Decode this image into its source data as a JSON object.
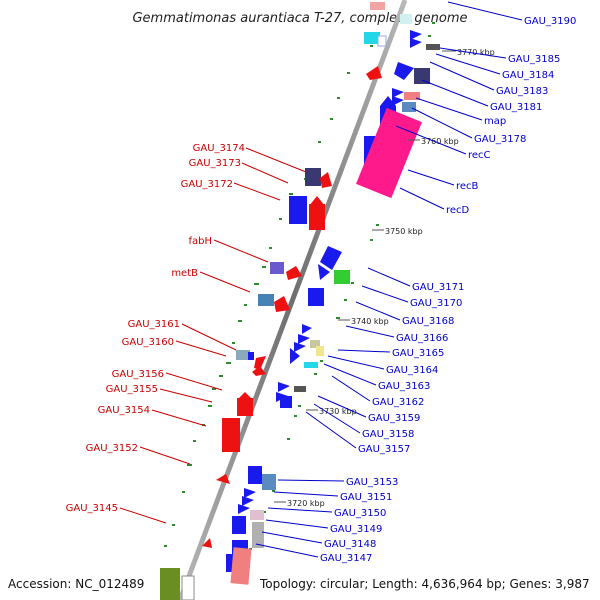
{
  "title": "Gemmatimonas aurantiaca T-27, complete genome",
  "footer": {
    "accession": "Accession: NC_012489",
    "summary": "Topology: circular; Length: 4,636,964 bp; Genes: 3,987"
  },
  "colors": {
    "left_label": "#cc0000",
    "right_label": "#0000cc",
    "backbone": "#808080"
  },
  "ticks": [
    {
      "label": "3770 kbp"
    },
    {
      "label": "3760 kbp"
    },
    {
      "label": "3750 kbp"
    },
    {
      "label": "3740 kbp"
    },
    {
      "label": "3730 kbp"
    },
    {
      "label": "3720 kbp"
    }
  ],
  "left_labels": [
    "GAU_3174",
    "GAU_3173",
    "GAU_3172",
    "fabH",
    "metB",
    "GAU_3161",
    "GAU_3160",
    "GAU_3156",
    "GAU_3155",
    "GAU_3154",
    "GAU_3152",
    "GAU_3145"
  ],
  "right_labels": [
    "GAU_3190",
    "GAU_3185",
    "GAU_3184",
    "GAU_3183",
    "GAU_3181",
    "map",
    "GAU_3178",
    "recC",
    "recB",
    "recD",
    "GAU_3171",
    "GAU_3170",
    "GAU_3168",
    "GAU_3166",
    "GAU_3165",
    "GAU_3164",
    "GAU_3163",
    "GAU_3162",
    "GAU_3159",
    "GAU_3158",
    "GAU_3157",
    "GAU_3153",
    "GAU_3151",
    "GAU_3150",
    "GAU_3149",
    "GAU_3148",
    "GAU_3147"
  ]
}
